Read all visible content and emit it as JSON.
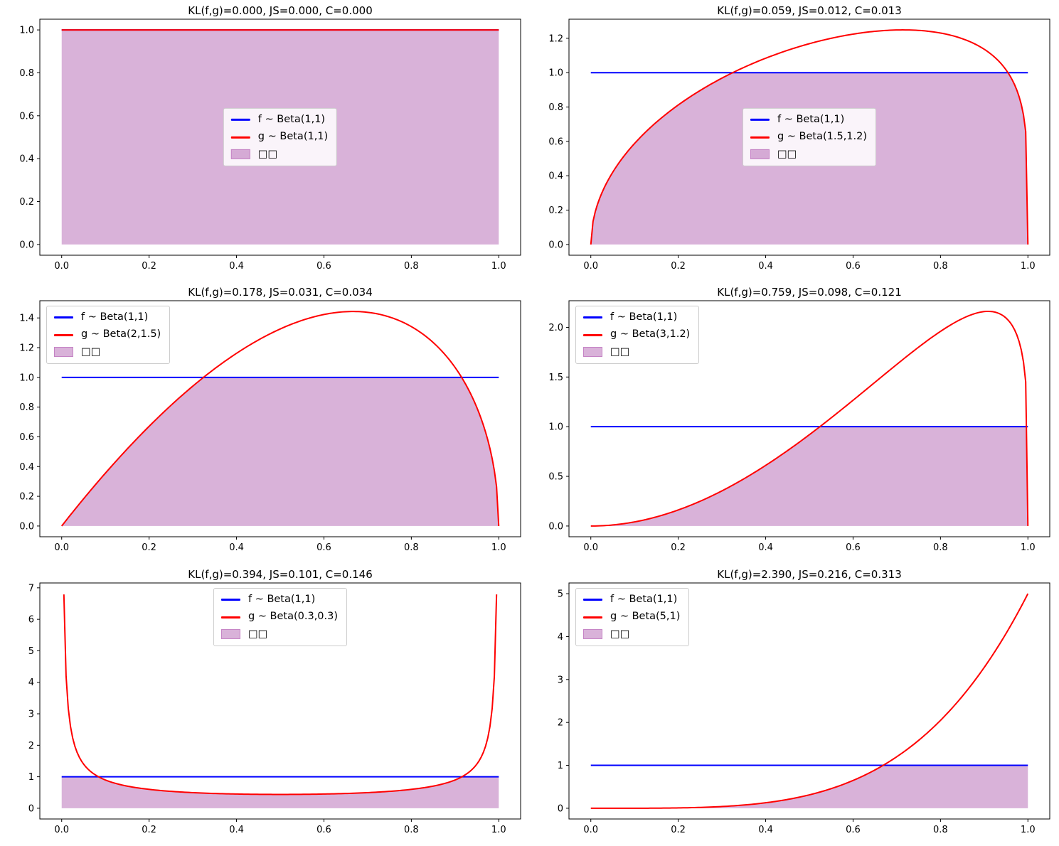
{
  "figure": {
    "background": "#ffffff",
    "grid": "off",
    "colors": {
      "f_line": "#0000ff",
      "g_line": "#ff0000",
      "overlap_fill": "#800080",
      "overlap_fill_alpha": 0.3,
      "legend_background": "rgba(255,255,255,0.85)",
      "legend_border": "#cccccc",
      "axes_frame": "#000000"
    }
  },
  "chart_data": [
    {
      "type": "line",
      "title": "KL(f,g)=0.000, JS=0.000, C=0.000",
      "xlabel": "",
      "ylabel": "",
      "series": [
        {
          "name": "f ~ Beta(1,1)",
          "beta": [
            1,
            1
          ],
          "color": "#0000ff"
        },
        {
          "name": "g ~ Beta(1,1)",
          "beta": [
            1,
            1
          ],
          "color": "#ff0000"
        }
      ],
      "fill_label": "□□",
      "fill_rule": "min(f,g)",
      "xlim": [
        -0.05,
        1.05
      ],
      "ylim": [
        -0.05,
        1.05
      ],
      "x_ticks": {
        "values": [
          0,
          0.2,
          0.4,
          0.6,
          0.8,
          1.0
        ],
        "labels": [
          "0.0",
          "0.2",
          "0.4",
          "0.6",
          "0.8",
          "1.0"
        ]
      },
      "y_ticks": {
        "values": [
          0,
          0.2,
          0.4,
          0.6,
          0.8,
          1.0
        ],
        "labels": [
          "0.0",
          "0.2",
          "0.4",
          "0.6",
          "0.8",
          "1.0"
        ]
      },
      "legend_loc": "center"
    },
    {
      "type": "line",
      "title": "KL(f,g)=0.059, JS=0.012, C=0.013",
      "xlabel": "",
      "ylabel": "",
      "series": [
        {
          "name": "f ~ Beta(1,1)",
          "beta": [
            1,
            1
          ],
          "color": "#0000ff"
        },
        {
          "name": "g ~ Beta(1.5,1.2)",
          "beta": [
            1.5,
            1.2
          ],
          "color": "#ff0000"
        }
      ],
      "fill_label": "□□",
      "fill_rule": "min(f,g)",
      "xlim": [
        -0.05,
        1.05
      ],
      "ylim": [
        -0.0624,
        1.3111
      ],
      "x_ticks": {
        "values": [
          0,
          0.2,
          0.4,
          0.6,
          0.8,
          1.0
        ],
        "labels": [
          "0.0",
          "0.2",
          "0.4",
          "0.6",
          "0.8",
          "1.0"
        ]
      },
      "y_ticks": {
        "values": [
          0,
          0.2,
          0.4,
          0.6,
          0.8,
          1.0,
          1.2
        ],
        "labels": [
          "0.0",
          "0.2",
          "0.4",
          "0.6",
          "0.8",
          "1.0",
          "1.2"
        ]
      },
      "legend_loc": "center"
    },
    {
      "type": "line",
      "title": "KL(f,g)=0.178, JS=0.031, C=0.034",
      "xlabel": "",
      "ylabel": "",
      "series": [
        {
          "name": "f ~ Beta(1,1)",
          "beta": [
            1,
            1
          ],
          "color": "#0000ff"
        },
        {
          "name": "g ~ Beta(2,1.5)",
          "beta": [
            2,
            1.5
          ],
          "color": "#ff0000"
        }
      ],
      "fill_label": "□□",
      "fill_rule": "min(f,g)",
      "xlim": [
        -0.05,
        1.05
      ],
      "ylim": [
        -0.0722,
        1.5158
      ],
      "x_ticks": {
        "values": [
          0,
          0.2,
          0.4,
          0.6,
          0.8,
          1.0
        ],
        "labels": [
          "0.0",
          "0.2",
          "0.4",
          "0.6",
          "0.8",
          "1.0"
        ]
      },
      "y_ticks": {
        "values": [
          0,
          0.2,
          0.4,
          0.6,
          0.8,
          1.0,
          1.2,
          1.4
        ],
        "labels": [
          "0.0",
          "0.2",
          "0.4",
          "0.6",
          "0.8",
          "1.0",
          "1.2",
          "1.4"
        ]
      },
      "legend_loc": "upper-left"
    },
    {
      "type": "line",
      "title": "KL(f,g)=0.759, JS=0.098, C=0.121",
      "xlabel": "",
      "ylabel": "",
      "series": [
        {
          "name": "f ~ Beta(1,1)",
          "beta": [
            1,
            1
          ],
          "color": "#0000ff"
        },
        {
          "name": "g ~ Beta(3,1.2)",
          "beta": [
            3,
            1.2
          ],
          "color": "#ff0000"
        }
      ],
      "fill_label": "□□",
      "fill_rule": "min(f,g)",
      "xlim": [
        -0.05,
        1.05
      ],
      "ylim": [
        -0.108,
        2.268
      ],
      "x_ticks": {
        "values": [
          0,
          0.2,
          0.4,
          0.6,
          0.8,
          1.0
        ],
        "labels": [
          "0.0",
          "0.2",
          "0.4",
          "0.6",
          "0.8",
          "1.0"
        ]
      },
      "y_ticks": {
        "values": [
          0,
          0.5,
          1.0,
          1.5,
          2.0
        ],
        "labels": [
          "0.0",
          "0.5",
          "1.0",
          "1.5",
          "2.0"
        ]
      },
      "legend_loc": "upper-left"
    },
    {
      "type": "line",
      "title": "KL(f,g)=0.394, JS=0.101, C=0.146",
      "xlabel": "",
      "ylabel": "",
      "series": [
        {
          "name": "f ~ Beta(1,1)",
          "beta": [
            1,
            1
          ],
          "color": "#0000ff"
        },
        {
          "name": "g ~ Beta(0.3,0.3)",
          "beta": [
            0.3,
            0.3
          ],
          "color": "#ff0000"
        }
      ],
      "fill_label": "□□",
      "fill_rule": "min(f,g)",
      "xlim": [
        -0.05,
        1.05
      ],
      "ylim": [
        -0.3407,
        7.1547
      ],
      "x_ticks": {
        "values": [
          0,
          0.2,
          0.4,
          0.6,
          0.8,
          1.0
        ],
        "labels": [
          "0.0",
          "0.2",
          "0.4",
          "0.6",
          "0.8",
          "1.0"
        ]
      },
      "y_ticks": {
        "values": [
          0,
          1,
          2,
          3,
          4,
          5,
          6,
          7
        ],
        "labels": [
          "0",
          "1",
          "2",
          "3",
          "4",
          "5",
          "6",
          "7"
        ]
      },
      "legend_loc": "upper-center"
    },
    {
      "type": "line",
      "title": "KL(f,g)=2.390, JS=0.216, C=0.313",
      "xlabel": "",
      "ylabel": "",
      "series": [
        {
          "name": "f ~ Beta(1,1)",
          "beta": [
            1,
            1
          ],
          "color": "#0000ff"
        },
        {
          "name": "g ~ Beta(5,1)",
          "beta": [
            5,
            1
          ],
          "color": "#ff0000"
        }
      ],
      "fill_label": "□□",
      "fill_rule": "min(f,g)",
      "xlim": [
        -0.05,
        1.05
      ],
      "ylim": [
        -0.25,
        5.25
      ],
      "x_ticks": {
        "values": [
          0,
          0.2,
          0.4,
          0.6,
          0.8,
          1.0
        ],
        "labels": [
          "0.0",
          "0.2",
          "0.4",
          "0.6",
          "0.8",
          "1.0"
        ]
      },
      "y_ticks": {
        "values": [
          0,
          1,
          2,
          3,
          4,
          5
        ],
        "labels": [
          "0",
          "1",
          "2",
          "3",
          "4",
          "5"
        ]
      },
      "legend_loc": "upper-left"
    }
  ]
}
